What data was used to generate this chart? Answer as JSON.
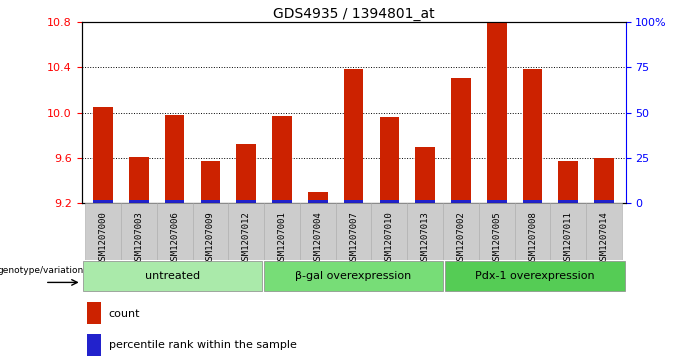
{
  "title": "GDS4935 / 1394801_at",
  "samples": [
    "GSM1207000",
    "GSM1207003",
    "GSM1207006",
    "GSM1207009",
    "GSM1207012",
    "GSM1207001",
    "GSM1207004",
    "GSM1207007",
    "GSM1207010",
    "GSM1207013",
    "GSM1207002",
    "GSM1207005",
    "GSM1207008",
    "GSM1207011",
    "GSM1207014"
  ],
  "counts": [
    10.05,
    9.61,
    9.98,
    9.57,
    9.72,
    9.97,
    9.3,
    10.38,
    9.96,
    9.7,
    10.3,
    10.79,
    10.38,
    9.57,
    9.6
  ],
  "percentiles": [
    2,
    2,
    2,
    2,
    2,
    2,
    1,
    2,
    2,
    2,
    2,
    2,
    2,
    2,
    2
  ],
  "groups": [
    {
      "label": "untreated",
      "start": 0,
      "end": 5,
      "color": "#aaeaaa"
    },
    {
      "label": "β-gal overexpression",
      "start": 5,
      "end": 10,
      "color": "#77dd77"
    },
    {
      "label": "Pdx-1 overexpression",
      "start": 10,
      "end": 15,
      "color": "#55cc55"
    }
  ],
  "ylim_left": [
    9.2,
    10.8
  ],
  "ylim_right": [
    0,
    100
  ],
  "yticks_left": [
    9.2,
    9.6,
    10.0,
    10.4,
    10.8
  ],
  "yticks_right": [
    0,
    25,
    50,
    75,
    100
  ],
  "ytick_labels_right": [
    "0",
    "25",
    "50",
    "75",
    "100%"
  ],
  "bar_color_red": "#cc2200",
  "bar_color_blue": "#2222cc",
  "plot_bg": "#ffffff",
  "genotype_label": "genotype/variation",
  "legend_count": "count",
  "legend_percentile": "percentile rank within the sample",
  "bar_width": 0.55
}
